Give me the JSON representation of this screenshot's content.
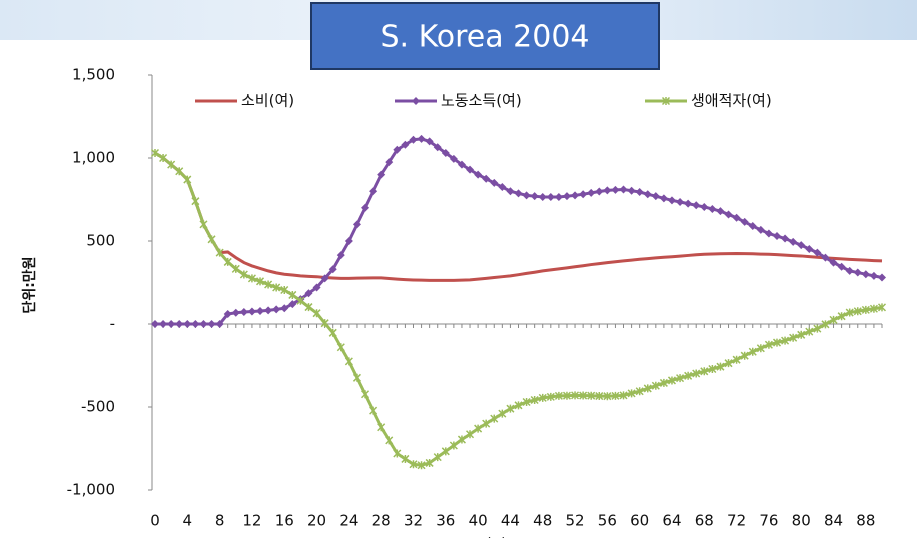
{
  "chart_data": {
    "type": "line",
    "title": "S. Korea 2004",
    "y_label": "단위:만원",
    "x_label": "연령",
    "x": [
      0,
      1,
      2,
      3,
      4,
      5,
      6,
      7,
      8,
      9,
      10,
      11,
      12,
      13,
      14,
      15,
      16,
      17,
      18,
      19,
      20,
      21,
      22,
      23,
      24,
      25,
      26,
      27,
      28,
      29,
      30,
      31,
      32,
      33,
      34,
      35,
      36,
      37,
      38,
      39,
      40,
      41,
      42,
      43,
      44,
      45,
      46,
      47,
      48,
      49,
      50,
      51,
      52,
      53,
      54,
      55,
      56,
      57,
      58,
      59,
      60,
      61,
      62,
      63,
      64,
      65,
      66,
      67,
      68,
      69,
      70,
      71,
      72,
      73,
      74,
      75,
      76,
      77,
      78,
      79,
      80,
      81,
      82,
      83,
      84,
      85,
      86,
      87,
      88,
      89,
      90
    ],
    "xlim": [
      0,
      90
    ],
    "xticks": [
      0,
      4,
      8,
      12,
      16,
      20,
      24,
      28,
      32,
      36,
      40,
      44,
      48,
      52,
      56,
      60,
      64,
      68,
      72,
      76,
      80,
      84,
      88
    ],
    "ylim": [
      -1000,
      1500
    ],
    "yticks": [
      {
        "value": -1000,
        "label": "-1,000"
      },
      -500,
      {
        "value": 0,
        "label": "-"
      },
      500,
      {
        "value": 1000,
        "label": "1,000"
      },
      {
        "value": 1500,
        "label": "1,500"
      }
    ],
    "series": [
      {
        "name": "소비(여)",
        "color": "#c0504d",
        "marker": "none",
        "values": [
          1030,
          1000,
          960,
          920,
          870,
          740,
          600,
          510,
          430,
          434,
          400,
          370,
          350,
          335,
          320,
          308,
          300,
          295,
          290,
          287,
          285,
          280,
          277,
          275,
          275,
          276,
          277,
          278,
          278,
          274,
          270,
          267,
          265,
          264,
          263,
          263,
          263,
          263,
          264,
          266,
          270,
          275,
          280,
          285,
          290,
          297,
          305,
          312,
          320,
          326,
          332,
          338,
          345,
          351,
          358,
          364,
          370,
          375,
          380,
          385,
          390,
          394,
          398,
          402,
          405,
          409,
          413,
          417,
          420,
          422,
          423,
          424,
          425,
          424,
          423,
          421,
          420,
          418,
          415,
          412,
          410,
          406,
          402,
          398,
          395,
          392,
          389,
          387,
          385,
          382,
          380
        ]
      },
      {
        "name": "노동소득(여)",
        "color": "#7b4ea3",
        "marker": "diamond",
        "values": [
          0,
          0,
          0,
          0,
          0,
          0,
          0,
          0,
          0,
          60,
          68,
          72,
          75,
          78,
          82,
          88,
          95,
          120,
          150,
          185,
          220,
          275,
          330,
          415,
          500,
          600,
          700,
          800,
          900,
          975,
          1050,
          1080,
          1110,
          1115,
          1100,
          1065,
          1030,
          995,
          960,
          930,
          900,
          875,
          850,
          825,
          800,
          787,
          775,
          770,
          765,
          765,
          765,
          770,
          775,
          782,
          790,
          798,
          805,
          808,
          810,
          803,
          795,
          782,
          770,
          757,
          745,
          735,
          725,
          715,
          705,
          693,
          680,
          660,
          640,
          615,
          590,
          567,
          545,
          530,
          515,
          495,
          475,
          452,
          430,
          400,
          370,
          345,
          320,
          310,
          300,
          290,
          280
        ]
      },
      {
        "name": "생애적자(여)",
        "color": "#9bbb59",
        "marker": "x",
        "values": [
          1030,
          1000,
          960,
          920,
          870,
          740,
          600,
          510,
          430,
          374,
          332,
          298,
          275,
          257,
          238,
          220,
          205,
          175,
          140,
          102,
          65,
          5,
          -53,
          -140,
          -225,
          -324,
          -423,
          -522,
          -622,
          -701,
          -780,
          -813,
          -845,
          -851,
          -837,
          -802,
          -767,
          -732,
          -696,
          -664,
          -630,
          -600,
          -570,
          -540,
          -510,
          -490,
          -470,
          -458,
          -445,
          -439,
          -433,
          -432,
          -430,
          -431,
          -432,
          -434,
          -435,
          -433,
          -430,
          -418,
          -405,
          -388,
          -372,
          -355,
          -340,
          -326,
          -312,
          -298,
          -285,
          -271,
          -257,
          -236,
          -215,
          -191,
          -167,
          -146,
          -125,
          -112,
          -100,
          -83,
          -65,
          -46,
          -28,
          -2,
          25,
          47,
          69,
          77,
          85,
          92,
          100
        ]
      }
    ]
  }
}
